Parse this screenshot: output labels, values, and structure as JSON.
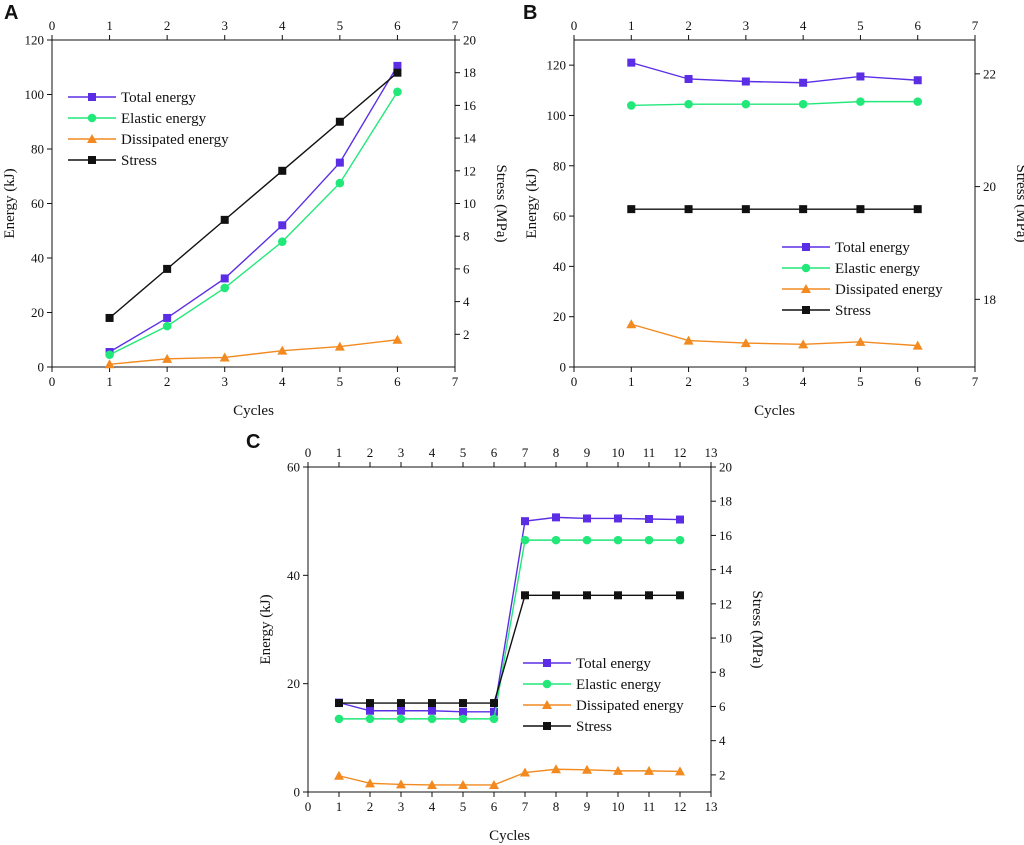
{
  "chart_data": [
    {
      "panel": "A",
      "type": "line",
      "xlabel": "Cycles",
      "ylabel": "Energy (kJ)",
      "y2label": "Stress (MPa)",
      "xlim": [
        0,
        7
      ],
      "ylim": [
        0,
        120
      ],
      "y2lim": [
        0,
        20
      ],
      "xticks": [
        0,
        1,
        2,
        3,
        4,
        5,
        6,
        7
      ],
      "yticks": [
        0,
        20,
        40,
        60,
        80,
        100,
        120
      ],
      "y2ticks": [
        2,
        4,
        6,
        8,
        10,
        12,
        14,
        16,
        18,
        20
      ],
      "legend_position": "upper-left",
      "x": [
        1,
        2,
        3,
        4,
        5,
        6
      ],
      "series": [
        {
          "name": "Total energy",
          "axis": "left",
          "color": "#5b2ee6",
          "marker": "square",
          "values": [
            5.5,
            18,
            32.5,
            52,
            75,
            110.5
          ]
        },
        {
          "name": "Elastic energy",
          "axis": "left",
          "color": "#22e87a",
          "marker": "circle",
          "values": [
            4.5,
            15,
            29,
            46,
            67.5,
            101
          ]
        },
        {
          "name": "Dissipated energy",
          "axis": "left",
          "color": "#f28a20",
          "marker": "triangle",
          "values": [
            1,
            3,
            3.5,
            6,
            7.5,
            10
          ]
        },
        {
          "name": "Stress",
          "axis": "right",
          "color": "#111111",
          "marker": "square",
          "values": [
            3,
            6,
            9,
            12,
            15,
            18
          ]
        }
      ]
    },
    {
      "panel": "B",
      "type": "line",
      "xlabel": "Cycles",
      "ylabel": "Energy (kJ)",
      "y2label": "Stress (MPa)",
      "xlim": [
        0,
        7
      ],
      "ylim": [
        0,
        130
      ],
      "y2lim": [
        16.8,
        22.6
      ],
      "xticks": [
        0,
        1,
        2,
        3,
        4,
        5,
        6,
        7
      ],
      "yticks": [
        0,
        20,
        40,
        60,
        80,
        100,
        120
      ],
      "y2ticks": [
        18,
        20,
        22
      ],
      "legend_position": "lower-right",
      "x": [
        1,
        2,
        3,
        4,
        5,
        6
      ],
      "series": [
        {
          "name": "Total energy",
          "axis": "left",
          "color": "#5b2ee6",
          "marker": "square",
          "values": [
            121,
            114.5,
            113.5,
            113,
            115.5,
            114
          ]
        },
        {
          "name": "Elastic energy",
          "axis": "left",
          "color": "#22e87a",
          "marker": "circle",
          "values": [
            104,
            104.5,
            104.5,
            104.5,
            105.5,
            105.5
          ]
        },
        {
          "name": "Dissipated energy",
          "axis": "left",
          "color": "#f28a20",
          "marker": "triangle",
          "values": [
            17,
            10.5,
            9.5,
            9,
            10,
            8.5
          ]
        },
        {
          "name": "Stress",
          "axis": "right",
          "color": "#111111",
          "marker": "square",
          "values": [
            19.6,
            19.6,
            19.6,
            19.6,
            19.6,
            19.6
          ]
        }
      ]
    },
    {
      "panel": "C",
      "type": "line",
      "xlabel": "Cycles",
      "ylabel": "Energy (kJ)",
      "y2label": "Stress (MPa)",
      "xlim": [
        0,
        13
      ],
      "ylim": [
        0,
        60
      ],
      "y2lim": [
        1,
        20
      ],
      "xticks": [
        0,
        1,
        2,
        3,
        4,
        5,
        6,
        7,
        8,
        9,
        10,
        11,
        12,
        13
      ],
      "yticks": [
        0,
        20,
        40,
        60
      ],
      "y2ticks": [
        2,
        4,
        6,
        8,
        10,
        12,
        14,
        16,
        18,
        20
      ],
      "legend_position": "center-right",
      "x": [
        1,
        2,
        3,
        4,
        5,
        6,
        7,
        8,
        9,
        10,
        11,
        12
      ],
      "series": [
        {
          "name": "Total energy",
          "axis": "left",
          "color": "#5b2ee6",
          "marker": "square",
          "values": [
            16.5,
            15,
            15,
            15,
            14.8,
            14.8,
            50,
            50.7,
            50.5,
            50.5,
            50.4,
            50.3
          ]
        },
        {
          "name": "Elastic energy",
          "axis": "left",
          "color": "#22e87a",
          "marker": "circle",
          "values": [
            13.5,
            13.5,
            13.5,
            13.5,
            13.5,
            13.5,
            46.5,
            46.5,
            46.5,
            46.5,
            46.5,
            46.5
          ]
        },
        {
          "name": "Dissipated energy",
          "axis": "left",
          "color": "#f28a20",
          "marker": "triangle",
          "values": [
            3,
            1.6,
            1.4,
            1.3,
            1.3,
            1.3,
            3.6,
            4.2,
            4.1,
            3.9,
            3.9,
            3.8
          ]
        },
        {
          "name": "Stress",
          "axis": "right",
          "color": "#111111",
          "marker": "square",
          "values": [
            6.2,
            6.2,
            6.2,
            6.2,
            6.2,
            6.2,
            12.5,
            12.5,
            12.5,
            12.5,
            12.5,
            12.5
          ]
        }
      ]
    }
  ]
}
